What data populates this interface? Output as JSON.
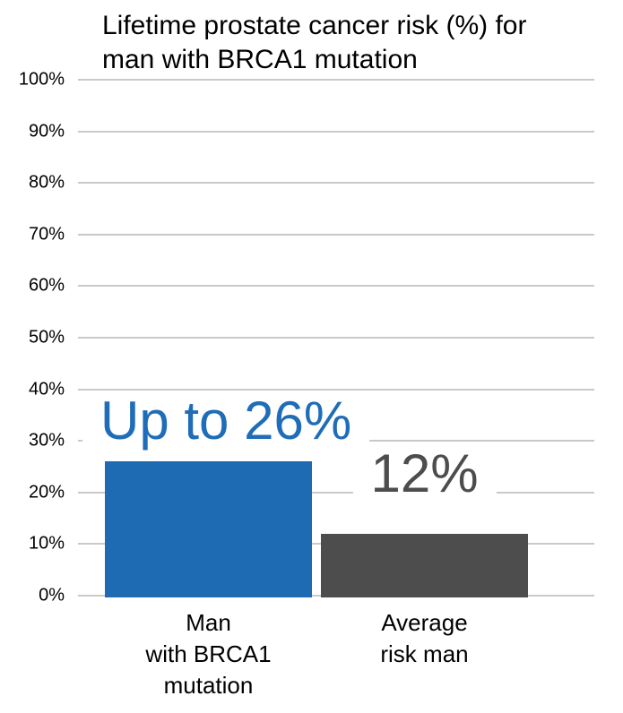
{
  "page": {
    "background": "#FFFFFF"
  },
  "chart_data": {
    "type": "bar",
    "title": "Lifetime prostate cancer risk (%) for man with BRCA1 mutation",
    "title_lines": [
      "Lifetime prostate cancer risk (%) for",
      "man with BRCA1 mutation"
    ],
    "categories": [
      "Man\nwith BRCA1\nmutation",
      "Average\nrisk man"
    ],
    "values": [
      26,
      12
    ],
    "data_labels": [
      "Up to 26%",
      "12%"
    ],
    "bar_colors": [
      "#1E6BB4",
      "#4D4D4D"
    ],
    "data_label_colors": [
      "#1F6DB8",
      "#4D4D4D"
    ],
    "xlabel": "",
    "ylabel": "",
    "ylim": [
      0,
      100
    ],
    "ytick_step": 10,
    "ytick_labels": [
      "0%",
      "10%",
      "20%",
      "30%",
      "40%",
      "50%",
      "60%",
      "70%",
      "80%",
      "90%",
      "100%"
    ],
    "grid": true,
    "legend": false,
    "gridline_color": "#C9C9C9",
    "text_color": "#000000"
  }
}
